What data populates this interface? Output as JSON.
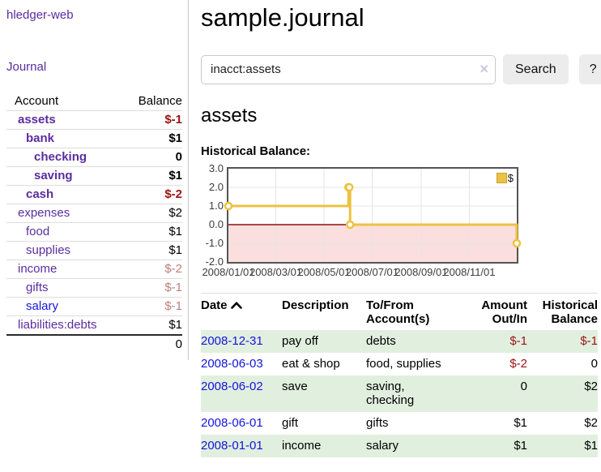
{
  "sidebar": {
    "app_title": "hledger-web",
    "journal_link": "Journal",
    "accounts": {
      "header": {
        "account": "Account",
        "balance": "Balance"
      },
      "rows": [
        {
          "name": "assets",
          "balance": "$-1"
        },
        {
          "name": "bank",
          "balance": "$1"
        },
        {
          "name": "checking",
          "balance": "0"
        },
        {
          "name": "saving",
          "balance": "$1"
        },
        {
          "name": "cash",
          "balance": "$-2"
        },
        {
          "name": "expenses",
          "balance": "$2"
        },
        {
          "name": "food",
          "balance": "$1"
        },
        {
          "name": "supplies",
          "balance": "$1"
        },
        {
          "name": "income",
          "balance": "$-2"
        },
        {
          "name": "gifts",
          "balance": "$-1"
        },
        {
          "name": "salary",
          "balance": "$-1"
        },
        {
          "name": "liabilities:debts",
          "balance": "$1"
        }
      ],
      "total": "0"
    }
  },
  "main": {
    "title": "sample.journal",
    "search": {
      "value": "inacct:assets",
      "clear_icon": "×",
      "button_label": "Search",
      "help_label": "?"
    },
    "account_heading": "assets",
    "section_label": "Historical Balance:"
  },
  "chart_data": {
    "type": "line",
    "title": "Historical Balance of assets",
    "step": true,
    "legend_label": "$",
    "line_color": "#edc240",
    "marker_fill": "#ffffff",
    "grid_color": "#e5e5e5",
    "zero_line_color": "#8f0e0e",
    "negative_region_color": "#fbdede",
    "x_range": [
      "2008-01-01",
      "2008-12-31"
    ],
    "y_range": [
      -2,
      3
    ],
    "points": [
      [
        "2008-01-01",
        1
      ],
      [
        "2008-06-01",
        2
      ],
      [
        "2008-06-02",
        2
      ],
      [
        "2008-06-03",
        0
      ],
      [
        "2008-12-31",
        -1
      ]
    ],
    "y_ticks": [
      {
        "label": "3.0",
        "value": 3
      },
      {
        "label": "2.0",
        "value": 2
      },
      {
        "label": "1.0",
        "value": 1
      },
      {
        "label": "0.0",
        "value": 0
      },
      {
        "label": "-1.0",
        "value": -1
      },
      {
        "label": "-2.0",
        "value": -2
      }
    ],
    "x_ticks": [
      {
        "label": "2008/01/01",
        "date": "2008-01-01"
      },
      {
        "label": "2008/03/01",
        "date": "2008-03-01"
      },
      {
        "label": "2008/05/01",
        "date": "2008-05-01"
      },
      {
        "label": "2008/07/01",
        "date": "2008-07-01"
      },
      {
        "label": "2008/09/01",
        "date": "2008-09-01"
      },
      {
        "label": "2008/11/01",
        "date": "2008-11-01"
      }
    ]
  },
  "register": {
    "headers": {
      "date": "Date",
      "description": "Description",
      "account": "To/From\nAccount(s)",
      "amount": "Amount\nOut/In",
      "balance": "Historical\nBalance"
    },
    "rows": [
      {
        "date": "2008-12-31",
        "description": "pay off",
        "account": "debts",
        "amount": "$-1",
        "balance": "$-1"
      },
      {
        "date": "2008-06-03",
        "description": "eat & shop",
        "account": "food, supplies",
        "amount": "$-2",
        "balance": "0"
      },
      {
        "date": "2008-06-02",
        "description": "save",
        "account": "saving,\nchecking",
        "amount": "0",
        "balance": "$2"
      },
      {
        "date": "2008-06-01",
        "description": "gift",
        "account": "gifts",
        "amount": "$1",
        "balance": "$2"
      },
      {
        "date": "2008-01-01",
        "description": "income",
        "account": "salary",
        "amount": "$1",
        "balance": "$1"
      }
    ]
  },
  "colors": {
    "link_purple": "#5a2d9e",
    "link_blue": "#1414dd",
    "negative_strong": "#9c1212",
    "negative_muted": "#bd7e7e",
    "row_stripe_green": "#e1efdf",
    "chart_line_gold": "#edc240"
  }
}
